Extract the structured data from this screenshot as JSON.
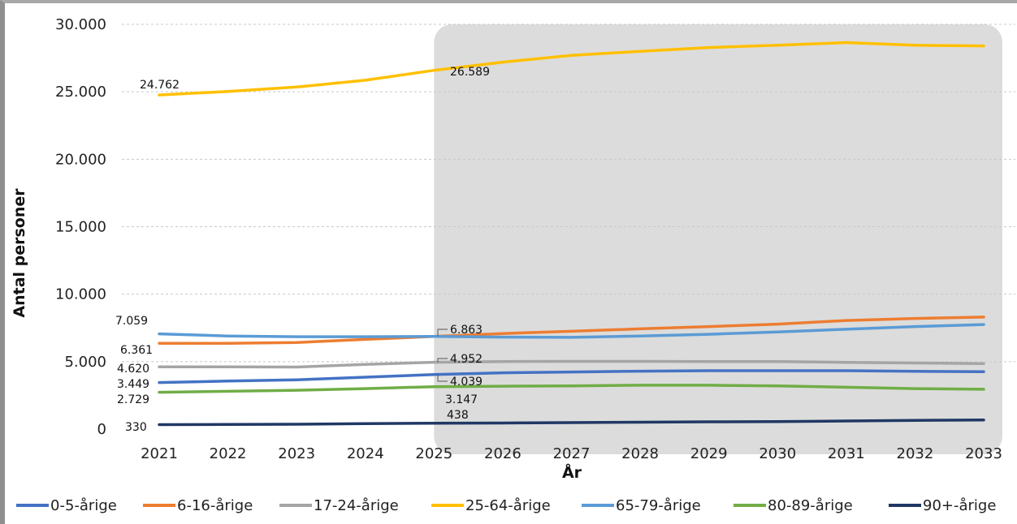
{
  "chart_data": {
    "type": "line",
    "x": [
      2021,
      2022,
      2023,
      2024,
      2025,
      2026,
      2027,
      2028,
      2029,
      2030,
      2031,
      2032,
      2033
    ],
    "x_tick_labels": [
      "2021",
      "2022",
      "2023",
      "2024",
      "2025",
      "2026",
      "2027",
      "2028",
      "2029",
      "2030",
      "2031",
      "2032",
      "2033"
    ],
    "xlabel": "År",
    "ylabel": "Antal personer",
    "ylim": [
      0,
      30000
    ],
    "y_ticks": [
      0,
      5000,
      10000,
      15000,
      20000,
      25000,
      30000
    ],
    "y_tick_labels": [
      "0",
      "5.000",
      "10.000",
      "15.000",
      "20.000",
      "25.000",
      "30.000"
    ],
    "grid": true,
    "legend_position": "bottom",
    "highlighted_range": [
      2025,
      2033
    ],
    "highlight_color": "#dcdcdc",
    "series": [
      {
        "name": "0-5-årige",
        "color": "#4472c4",
        "values": [
          3449,
          3560,
          3650,
          3850,
          4039,
          4170,
          4230,
          4290,
          4330,
          4330,
          4330,
          4280,
          4250
        ]
      },
      {
        "name": "6-16-årige",
        "color": "#ed7d31",
        "values": [
          6361,
          6361,
          6420,
          6650,
          6863,
          7080,
          7250,
          7430,
          7600,
          7780,
          8050,
          8200,
          8300
        ]
      },
      {
        "name": "17-24-årige",
        "color": "#a5a5a5",
        "values": [
          4620,
          4610,
          4600,
          4800,
          4952,
          5010,
          5020,
          5020,
          5000,
          5000,
          4950,
          4900,
          4850
        ]
      },
      {
        "name": "25-64-årige",
        "color": "#ffc000",
        "values": [
          24762,
          25030,
          25350,
          25860,
          26589,
          27200,
          27700,
          28000,
          28280,
          28450,
          28650,
          28450,
          28400
        ]
      },
      {
        "name": "65-79-årige",
        "color": "#5b9bd5",
        "values": [
          7059,
          6900,
          6850,
          6850,
          6863,
          6820,
          6800,
          6900,
          7030,
          7200,
          7400,
          7600,
          7750
        ]
      },
      {
        "name": "80-89-årige",
        "color": "#70ad47",
        "values": [
          2729,
          2800,
          2880,
          3000,
          3147,
          3180,
          3200,
          3250,
          3250,
          3200,
          3100,
          3000,
          2950
        ]
      },
      {
        "name": "90+-årige",
        "color": "#203864",
        "values": [
          330,
          340,
          360,
          400,
          438,
          450,
          480,
          510,
          540,
          560,
          600,
          650,
          680
        ]
      }
    ],
    "data_labels": [
      {
        "series": "25-64-årige",
        "x": 2021,
        "text": "24.762"
      },
      {
        "series": "25-64-årige",
        "x": 2025,
        "text": "26.589"
      },
      {
        "series": "65-79-årige",
        "x": 2021,
        "text": "7.059"
      },
      {
        "series": "6-16-årige",
        "x": 2021,
        "text": "6.361"
      },
      {
        "series": "17-24-årige",
        "x": 2021,
        "text": "4.620"
      },
      {
        "series": "0-5-årige",
        "x": 2021,
        "text": "3.449"
      },
      {
        "series": "80-89-årige",
        "x": 2021,
        "text": "2.729"
      },
      {
        "series": "90+-årige",
        "x": 2021,
        "text": "330"
      },
      {
        "series": "6-16-årige",
        "x": 2025,
        "text": "6.863"
      },
      {
        "series": "17-24-årige",
        "x": 2025,
        "text": "4.952"
      },
      {
        "series": "0-5-årige",
        "x": 2025,
        "text": "4.039"
      },
      {
        "series": "80-89-årige",
        "x": 2025,
        "text": "3.147"
      },
      {
        "series": "90+-årige",
        "x": 2025,
        "text": "438"
      }
    ]
  }
}
